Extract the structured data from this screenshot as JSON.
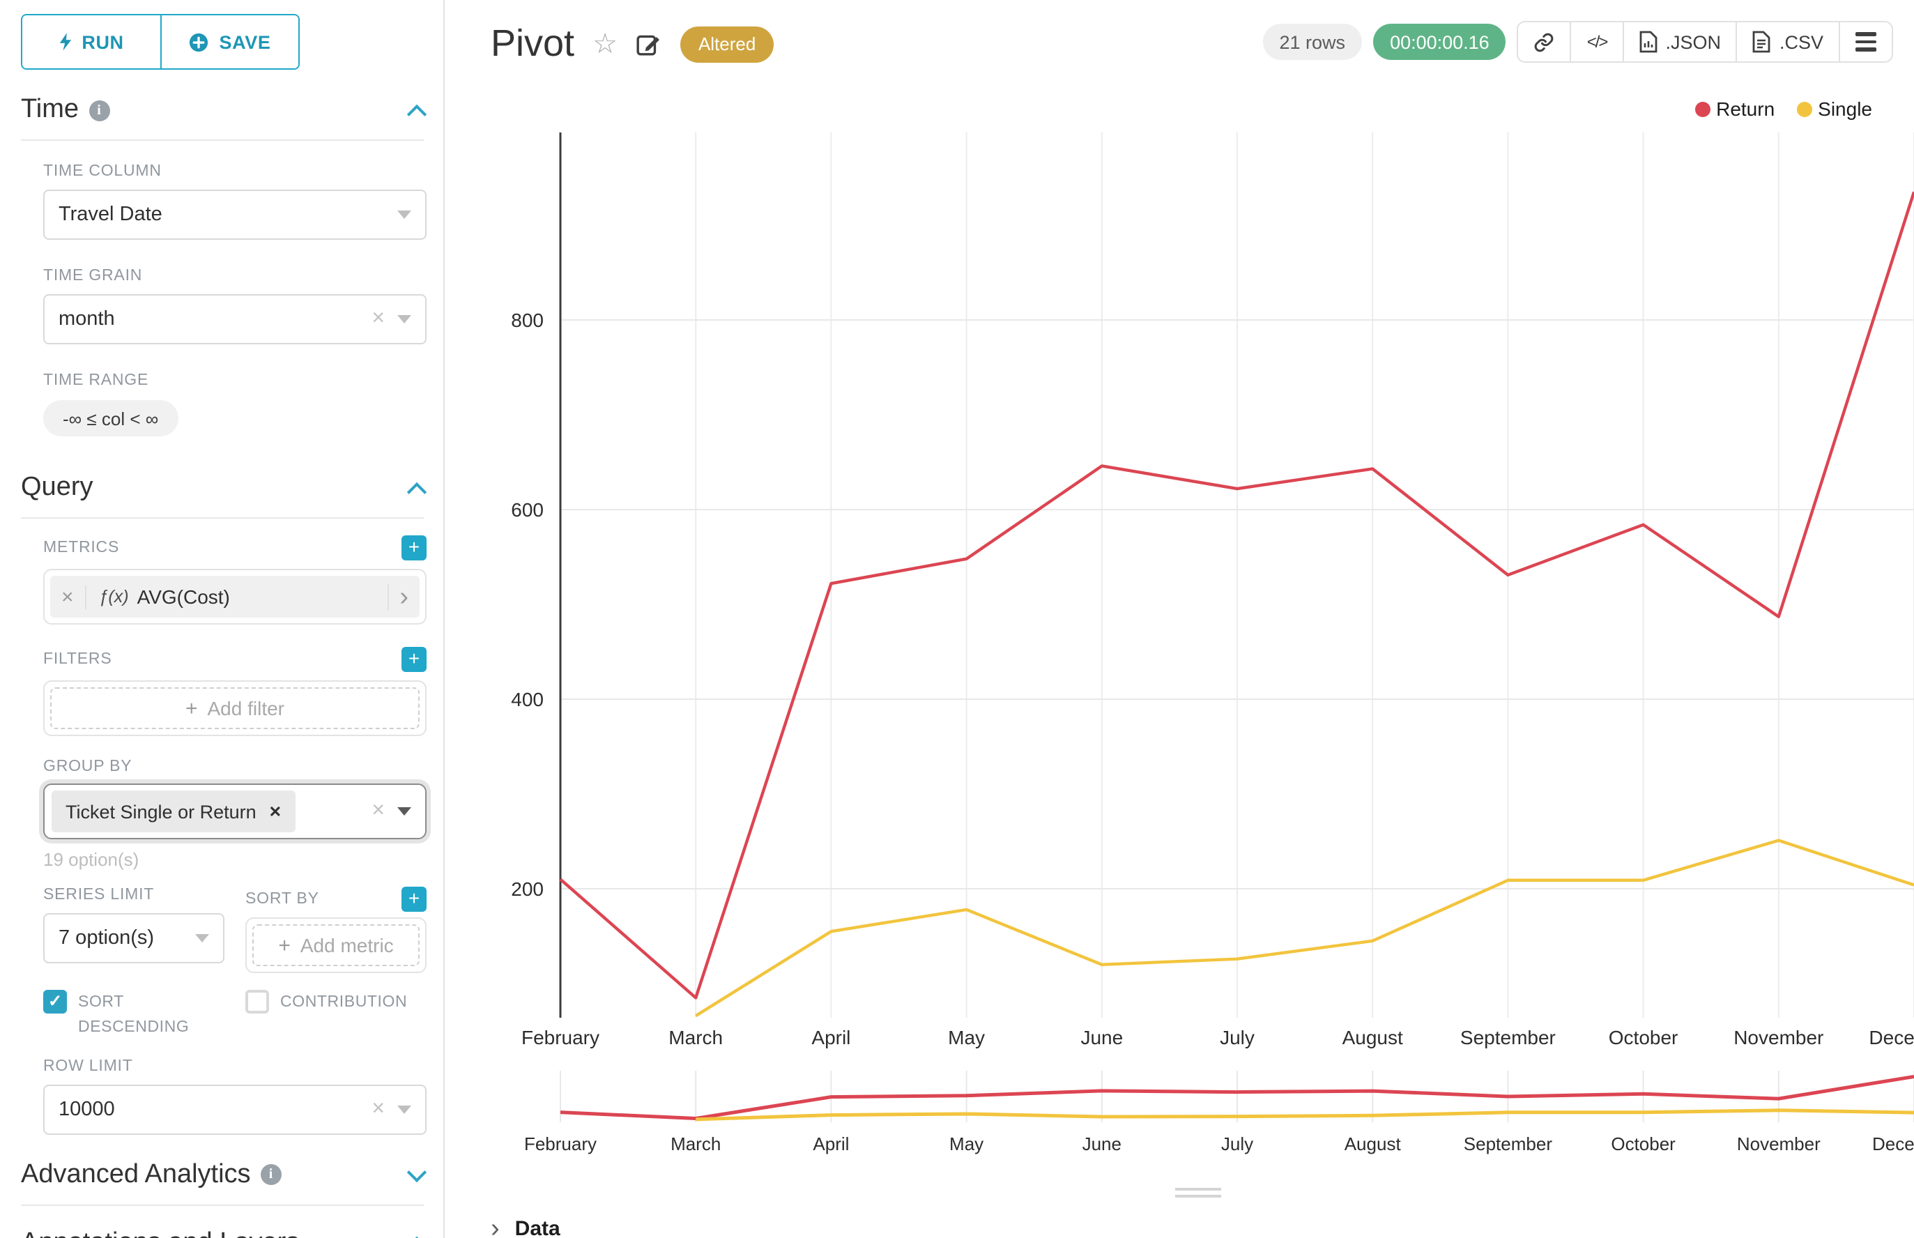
{
  "toolbar": {
    "run_label": "RUN",
    "save_label": "SAVE"
  },
  "sidebar": {
    "time": {
      "header": "Time",
      "time_column_label": "TIME COLUMN",
      "time_column_value": "Travel Date",
      "time_grain_label": "TIME GRAIN",
      "time_grain_value": "month",
      "time_range_label": "TIME RANGE",
      "time_range_value": "-∞ ≤ col < ∞"
    },
    "query": {
      "header": "Query",
      "metrics_label": "METRICS",
      "metric_fx": "ƒ(x)",
      "metric_value": "AVG(Cost)",
      "filters_label": "FILTERS",
      "add_filter_placeholder": "Add filter",
      "group_by_label": "GROUP BY",
      "group_by_chip": "Ticket Single or Return",
      "group_by_hint": "19 option(s)",
      "series_limit_label": "SERIES LIMIT",
      "series_limit_value": "7 option(s)",
      "sort_by_label": "SORT BY",
      "add_metric_placeholder": "Add metric",
      "sort_descending_label": "SORT DESCENDING",
      "contribution_label": "CONTRIBUTION",
      "row_limit_label": "ROW LIMIT",
      "row_limit_value": "10000"
    },
    "advanced_header": "Advanced Analytics",
    "annotations_header": "Annotations and Layers"
  },
  "header": {
    "title": "Pivot",
    "altered_badge": "Altered",
    "rows_badge": "21 rows",
    "timer_badge": "00:00:00.16",
    "export_json": ".JSON",
    "export_csv": ".CSV"
  },
  "footer": {
    "data_label": "Data"
  },
  "colors": {
    "accent": "#20A7C9",
    "altered_badge_bg": "#CFA43F",
    "timer_badge_bg": "#5FB487",
    "return_series": "#DC4552",
    "single_series": "#F2C43D"
  },
  "chart_data": {
    "type": "line",
    "title": "Pivot",
    "xlabel": "",
    "ylabel": "",
    "categories": [
      "February",
      "March",
      "April",
      "May",
      "June",
      "July",
      "August",
      "September",
      "October",
      "November",
      "December"
    ],
    "series": [
      {
        "name": "Return",
        "color": "#DC4552",
        "values": [
          210,
          85,
          522,
          548,
          646,
          622,
          643,
          531,
          584,
          487,
          935
        ]
      },
      {
        "name": "Single",
        "color": "#F2C43D",
        "values": [
          null,
          66,
          155,
          178,
          120,
          126,
          145,
          209,
          209,
          251,
          204
        ]
      }
    ],
    "y_ticks": [
      200,
      400,
      600,
      800
    ],
    "y_domain": [
      64,
      998
    ],
    "grid": true,
    "legend_position": "top-right",
    "has_mini_chart": true
  }
}
